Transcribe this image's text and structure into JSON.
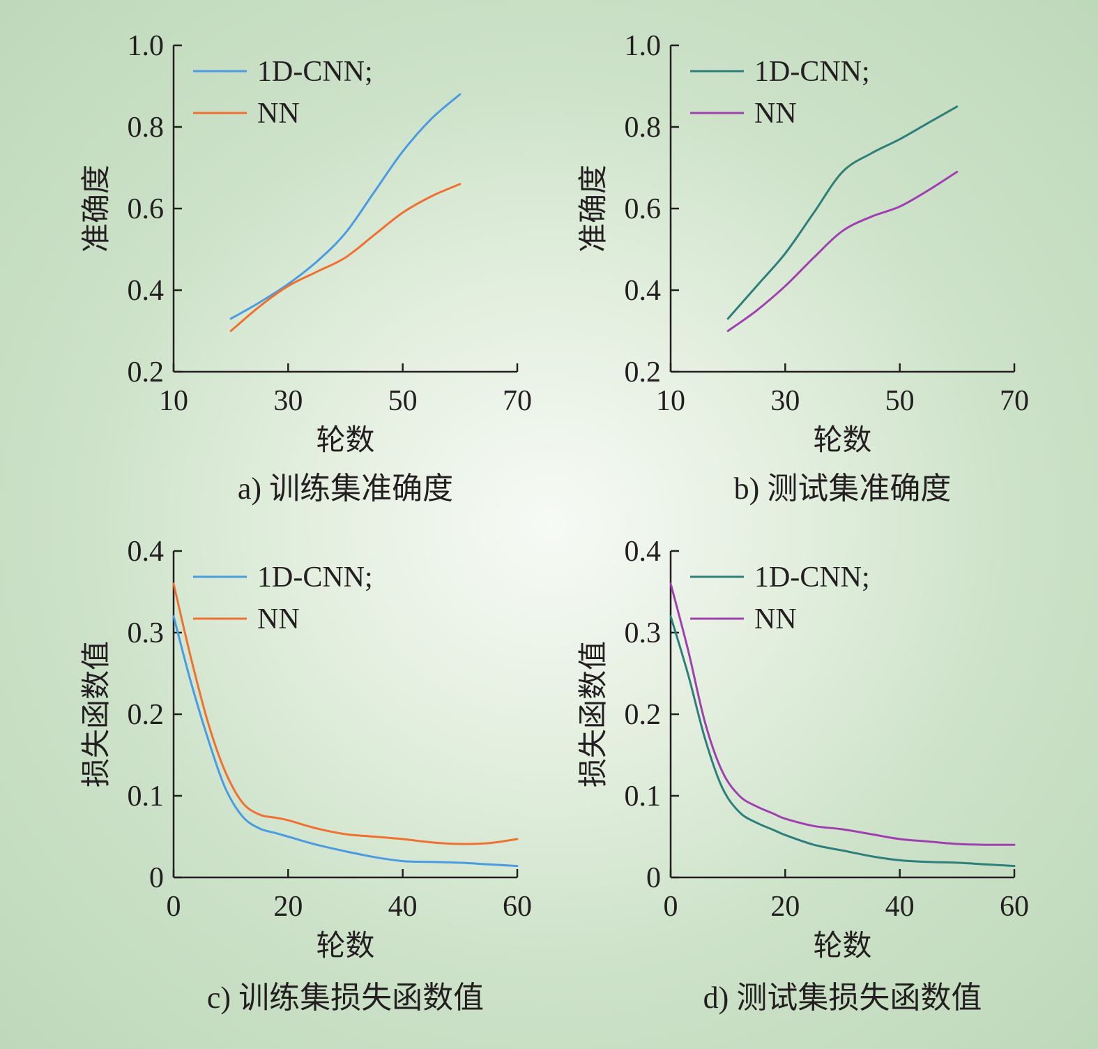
{
  "chart_data": [
    {
      "type": "line",
      "caption": "a) 训练集准确度",
      "xlabel": "轮数",
      "ylabel": "准确度",
      "xlim": [
        10,
        70
      ],
      "ylim": [
        0.2,
        1.0
      ],
      "xticks": [
        "10",
        "30",
        "50",
        "70"
      ],
      "yticks": [
        "0.2",
        "0.4",
        "0.6",
        "0.8",
        "1.0"
      ],
      "legend_position": "top-left",
      "series": [
        {
          "name": "1D-CNN;",
          "color": "#4a9be0",
          "x": [
            20,
            25,
            30,
            35,
            40,
            45,
            50,
            55,
            60
          ],
          "y": [
            0.33,
            0.37,
            0.415,
            0.47,
            0.54,
            0.64,
            0.74,
            0.82,
            0.88
          ]
        },
        {
          "name": "NN",
          "color": "#f07030",
          "x": [
            20,
            25,
            30,
            35,
            40,
            45,
            50,
            55,
            60
          ],
          "y": [
            0.3,
            0.36,
            0.41,
            0.445,
            0.48,
            0.535,
            0.59,
            0.63,
            0.66
          ]
        }
      ]
    },
    {
      "type": "line",
      "caption": "b) 测试集准确度",
      "xlabel": "轮数",
      "ylabel": "准确度",
      "xlim": [
        10,
        70
      ],
      "ylim": [
        0.2,
        1.0
      ],
      "xticks": [
        "10",
        "30",
        "50",
        "70"
      ],
      "yticks": [
        "0.2",
        "0.4",
        "0.6",
        "0.8",
        "1.0"
      ],
      "legend_position": "top-left",
      "series": [
        {
          "name": "1D-CNN;",
          "color": "#2e7f7a",
          "x": [
            20,
            25,
            30,
            35,
            40,
            45,
            50,
            55,
            60
          ],
          "y": [
            0.33,
            0.41,
            0.49,
            0.59,
            0.69,
            0.735,
            0.77,
            0.81,
            0.85
          ]
        },
        {
          "name": "NN",
          "color": "#a040b0",
          "x": [
            20,
            25,
            30,
            35,
            40,
            45,
            50,
            55,
            60
          ],
          "y": [
            0.3,
            0.35,
            0.41,
            0.48,
            0.545,
            0.58,
            0.605,
            0.645,
            0.69
          ]
        }
      ]
    },
    {
      "type": "line",
      "caption": "c) 训练集损失函数值",
      "xlabel": "轮数",
      "ylabel": "损失函数值",
      "xlim": [
        0,
        60
      ],
      "ylim": [
        0,
        0.4
      ],
      "xticks": [
        "0",
        "20",
        "40",
        "60"
      ],
      "yticks": [
        "0",
        "0.1",
        "0.2",
        "0.3",
        "0.4"
      ],
      "legend_position": "top-right",
      "series": [
        {
          "name": "1D-CNN;",
          "color": "#4a9be0",
          "x": [
            0,
            3,
            6,
            9,
            12,
            15,
            18,
            20,
            25,
            30,
            35,
            40,
            45,
            50,
            55,
            60
          ],
          "y": [
            0.32,
            0.24,
            0.17,
            0.11,
            0.075,
            0.06,
            0.054,
            0.05,
            0.04,
            0.032,
            0.025,
            0.02,
            0.019,
            0.018,
            0.016,
            0.014
          ]
        },
        {
          "name": "NN",
          "color": "#f07030",
          "x": [
            0,
            3,
            6,
            9,
            12,
            15,
            18,
            20,
            25,
            30,
            35,
            40,
            45,
            50,
            55,
            60
          ],
          "y": [
            0.36,
            0.27,
            0.19,
            0.13,
            0.092,
            0.077,
            0.073,
            0.07,
            0.06,
            0.053,
            0.05,
            0.047,
            0.043,
            0.041,
            0.042,
            0.047
          ]
        }
      ]
    },
    {
      "type": "line",
      "caption": "d) 测试集损失函数值",
      "xlabel": "轮数",
      "ylabel": "损失函数值",
      "xlim": [
        0,
        60
      ],
      "ylim": [
        0,
        0.4
      ],
      "xticks": [
        "0",
        "20",
        "40",
        "60"
      ],
      "yticks": [
        "0",
        "0.1",
        "0.2",
        "0.3",
        "0.4"
      ],
      "legend_position": "top-right",
      "series": [
        {
          "name": "1D-CNN;",
          "color": "#2e7f7a",
          "x": [
            0,
            3,
            6,
            9,
            12,
            15,
            18,
            20,
            25,
            30,
            35,
            40,
            45,
            50,
            55,
            60
          ],
          "y": [
            0.32,
            0.25,
            0.17,
            0.11,
            0.08,
            0.067,
            0.058,
            0.052,
            0.04,
            0.033,
            0.026,
            0.021,
            0.019,
            0.018,
            0.016,
            0.014
          ]
        },
        {
          "name": "NN",
          "color": "#a040b0",
          "x": [
            0,
            3,
            6,
            9,
            12,
            15,
            18,
            20,
            25,
            30,
            35,
            40,
            45,
            50,
            55,
            60
          ],
          "y": [
            0.36,
            0.28,
            0.19,
            0.13,
            0.1,
            0.087,
            0.078,
            0.072,
            0.063,
            0.059,
            0.053,
            0.047,
            0.044,
            0.041,
            0.04,
            0.04
          ]
        }
      ]
    }
  ]
}
